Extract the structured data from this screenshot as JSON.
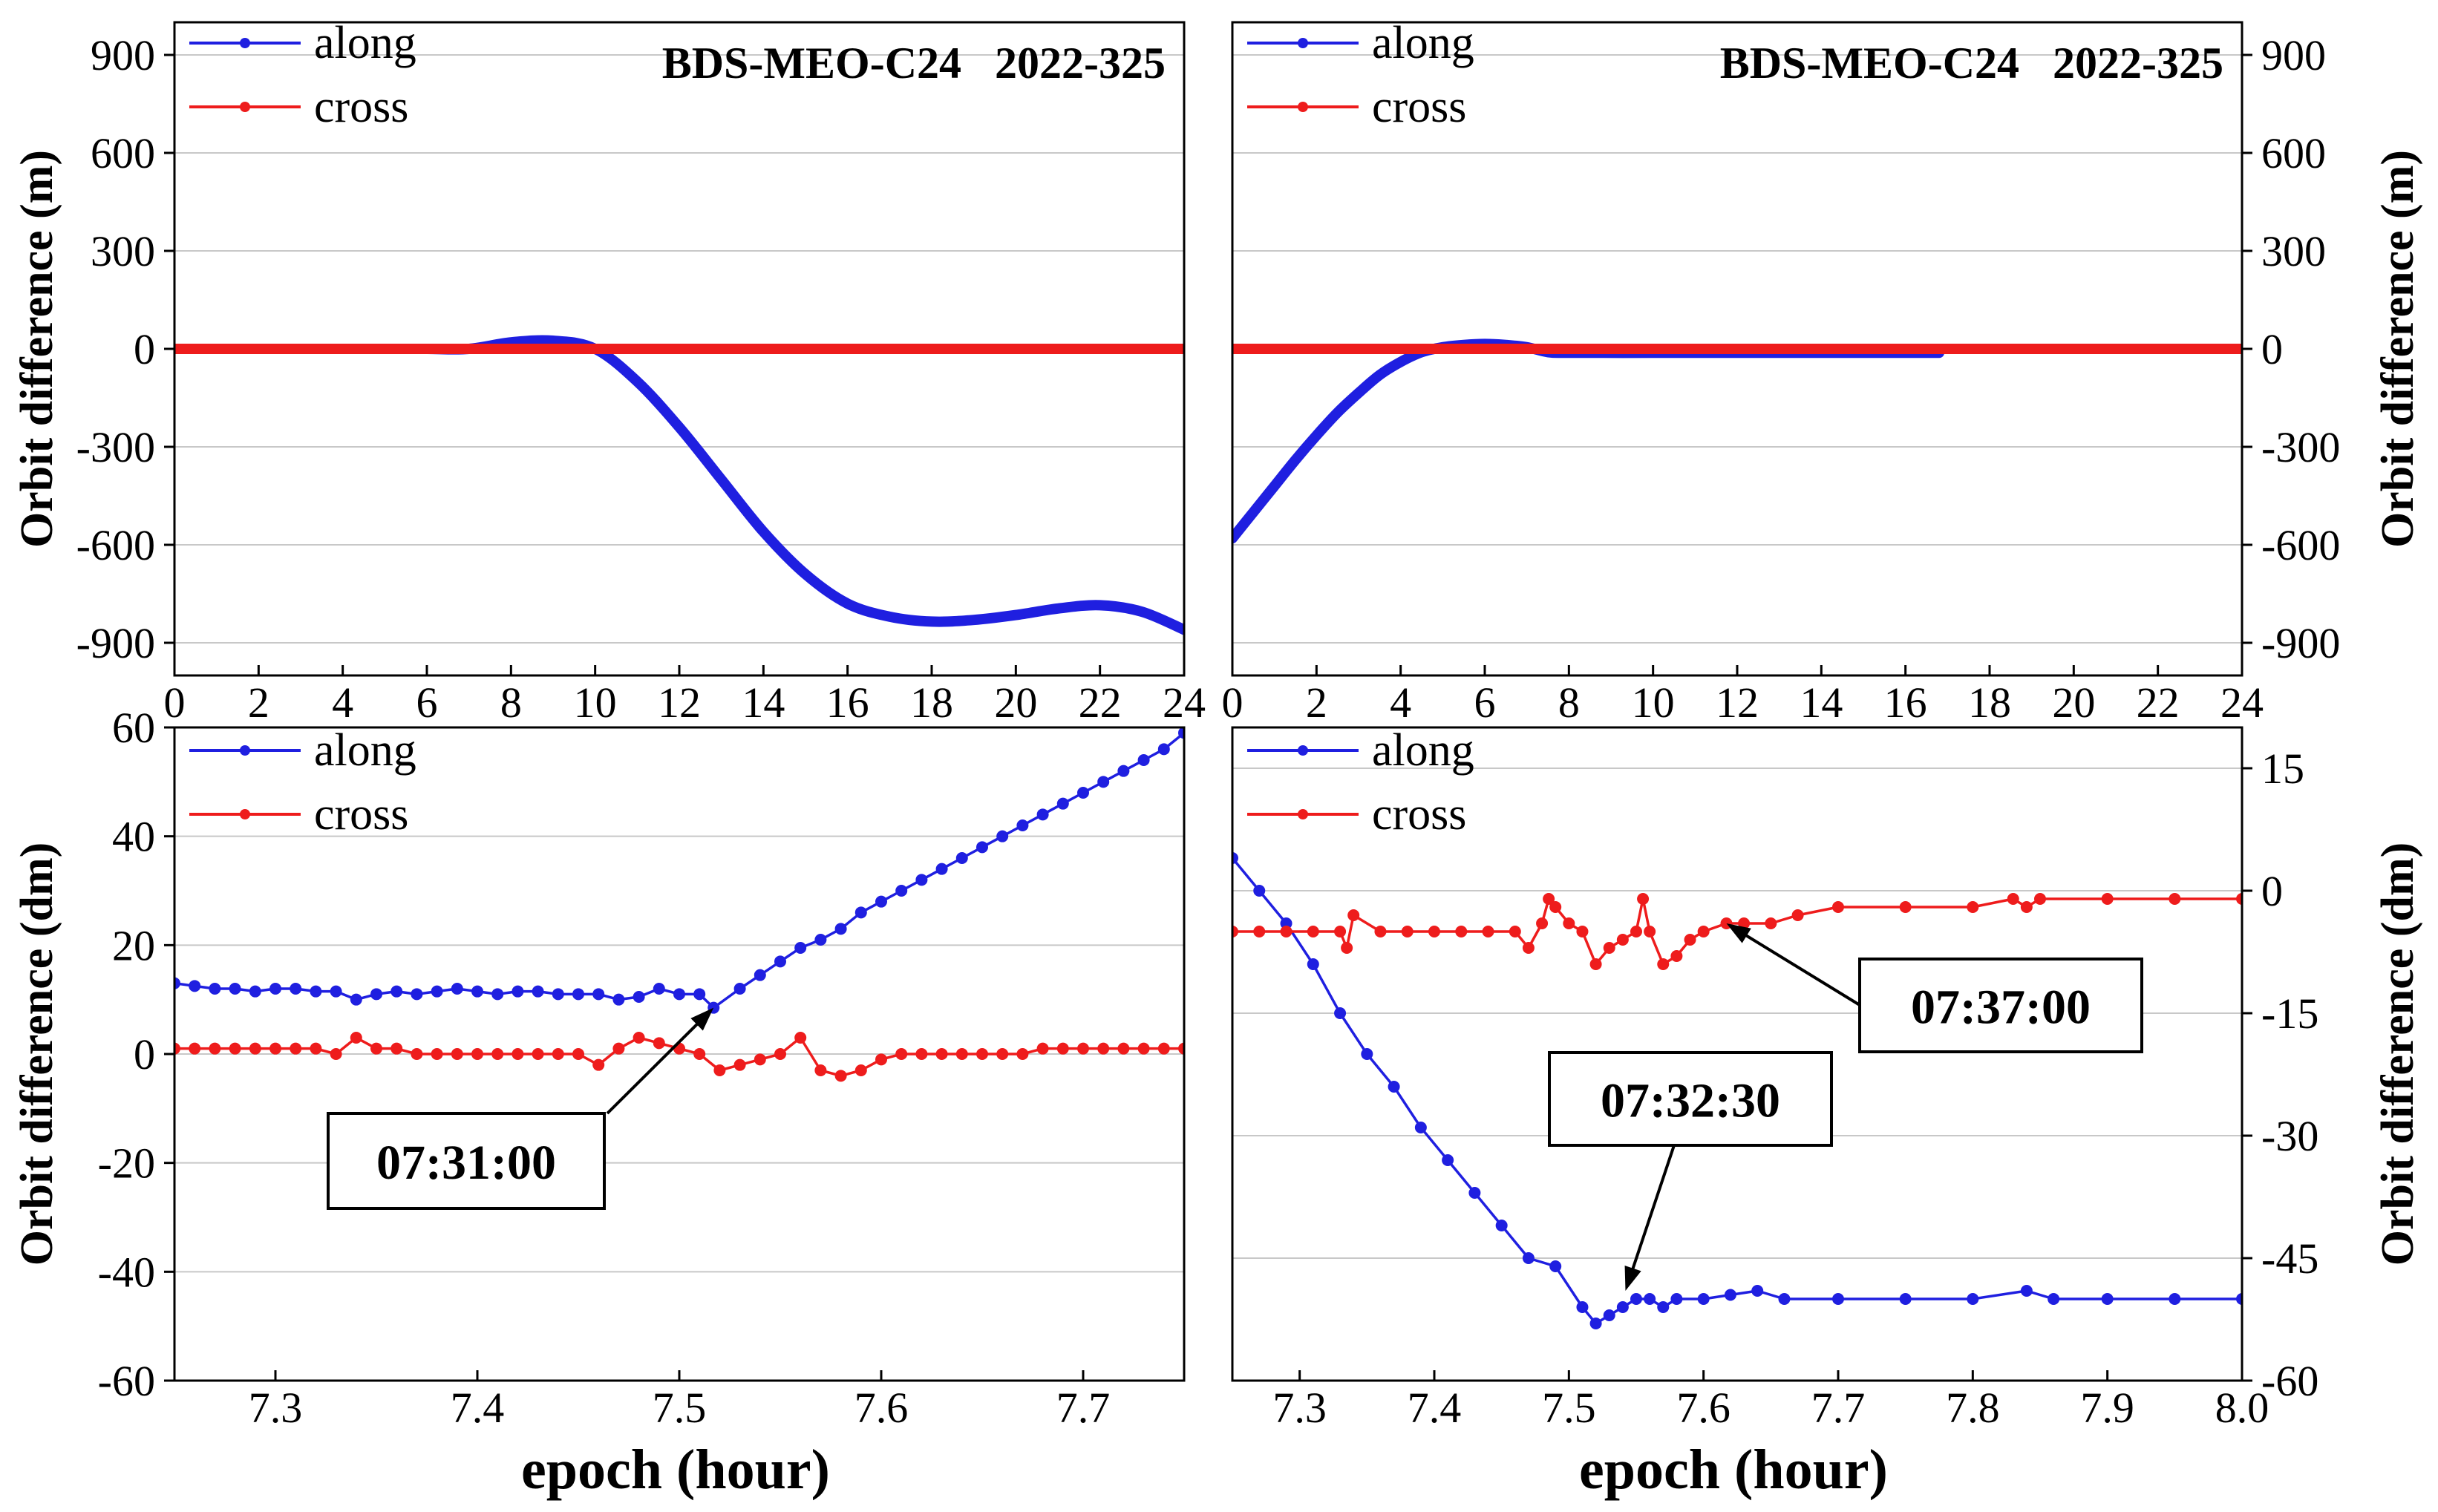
{
  "figure": {
    "x_axis_title": "epoch (hour)",
    "colors": {
      "along": "#1f1fe0",
      "cross": "#ee1c1c",
      "grid": "#c8c8c8",
      "axis": "#000000"
    }
  },
  "chart_data": [
    {
      "id": "top-left",
      "type": "line",
      "title": "BDS-MEO-C24   2022-325",
      "xlabel": "",
      "ylabel": "Orbit difference (m)",
      "xlim": [
        0,
        24
      ],
      "ylim": [
        -1000,
        1000
      ],
      "x_ticks": [
        "0",
        "2",
        "4",
        "6",
        "8",
        "10",
        "12",
        "14",
        "16",
        "18",
        "20",
        "22",
        "24"
      ],
      "y_ticks": [
        "900",
        "600",
        "300",
        "0",
        "-300",
        "-600",
        "-900"
      ],
      "legend": [
        "along",
        "cross"
      ],
      "series": [
        {
          "name": "along",
          "color": "#1f1fe0",
          "x": [
            0,
            1,
            2,
            3,
            4,
            5,
            6,
            7,
            8,
            9,
            10,
            11,
            12,
            13,
            14,
            15,
            16,
            17,
            18,
            19,
            20,
            21,
            22,
            23,
            24
          ],
          "y": [
            0,
            0,
            0,
            0,
            0,
            0,
            0,
            0,
            20,
            25,
            0,
            -100,
            -240,
            -400,
            -560,
            -690,
            -780,
            -820,
            -835,
            -830,
            -815,
            -795,
            -785,
            -805,
            -860
          ]
        },
        {
          "name": "cross",
          "color": "#ee1c1c",
          "x": [
            0,
            24
          ],
          "y": [
            0,
            0
          ]
        }
      ]
    },
    {
      "id": "top-right",
      "type": "line",
      "title": "BDS-MEO-C24   2022-325",
      "xlabel": "",
      "ylabel": "Orbit difference (m)",
      "xlim": [
        0,
        24
      ],
      "ylim": [
        -1000,
        1000
      ],
      "x_ticks": [
        "0",
        "2",
        "4",
        "6",
        "8",
        "10",
        "12",
        "14",
        "16",
        "18",
        "20",
        "22",
        "24"
      ],
      "y_ticks": [
        "900",
        "600",
        "300",
        "0",
        "-300",
        "-600",
        "-900"
      ],
      "legend": [
        "along",
        "cross"
      ],
      "series": [
        {
          "name": "along",
          "color": "#1f1fe0",
          "x": [
            0,
            0.5,
            1,
            1.5,
            2,
            2.5,
            3,
            3.5,
            4,
            4.5,
            5,
            5.5,
            6,
            6.5,
            7,
            7.5,
            8,
            10,
            12,
            14,
            16,
            16.8
          ],
          "y": [
            -580,
            -500,
            -420,
            -340,
            -265,
            -195,
            -135,
            -80,
            -40,
            -10,
            5,
            12,
            15,
            12,
            5,
            -10,
            -12,
            -12,
            -12,
            -12,
            -12,
            -12
          ]
        },
        {
          "name": "cross",
          "color": "#ee1c1c",
          "x": [
            0,
            24
          ],
          "y": [
            0,
            0
          ]
        }
      ]
    },
    {
      "id": "bottom-left",
      "type": "line",
      "title": "",
      "xlabel": "epoch (hour)",
      "ylabel": "Orbit difference (dm)",
      "xlim": [
        7.25,
        7.75
      ],
      "ylim": [
        -60,
        60
      ],
      "x_ticks": [
        "7.3",
        "7.4",
        "7.5",
        "7.6",
        "7.7"
      ],
      "y_ticks": [
        "60",
        "40",
        "20",
        "0",
        "-20",
        "-40",
        "-60"
      ],
      "legend": [
        "along",
        "cross"
      ],
      "annotation": {
        "label": "07:31:00",
        "x": 7.517,
        "y": 8.5
      },
      "series": [
        {
          "name": "along",
          "color": "#1f1fe0",
          "x": [
            7.25,
            7.26,
            7.27,
            7.28,
            7.29,
            7.3,
            7.31,
            7.32,
            7.33,
            7.34,
            7.35,
            7.36,
            7.37,
            7.38,
            7.39,
            7.4,
            7.41,
            7.42,
            7.43,
            7.44,
            7.45,
            7.46,
            7.47,
            7.48,
            7.49,
            7.5,
            7.51,
            7.517,
            7.53,
            7.54,
            7.55,
            7.56,
            7.57,
            7.58,
            7.59,
            7.6,
            7.61,
            7.62,
            7.63,
            7.64,
            7.65,
            7.66,
            7.67,
            7.68,
            7.69,
            7.7,
            7.71,
            7.72,
            7.73,
            7.74,
            7.75
          ],
          "y": [
            13,
            12.5,
            12,
            12,
            11.5,
            12,
            12,
            11.5,
            11.5,
            10,
            11,
            11.5,
            11,
            11.5,
            12,
            11.5,
            11,
            11.5,
            11.5,
            11,
            11,
            11,
            10,
            10.5,
            12,
            11,
            11,
            8.5,
            12,
            14.5,
            17,
            19.5,
            21,
            23,
            26,
            28,
            30,
            32,
            34,
            36,
            38,
            40,
            42,
            44,
            46,
            48,
            50,
            52,
            54,
            56,
            59
          ]
        },
        {
          "name": "cross",
          "color": "#ee1c1c",
          "x": [
            7.25,
            7.26,
            7.27,
            7.28,
            7.29,
            7.3,
            7.31,
            7.32,
            7.33,
            7.34,
            7.35,
            7.36,
            7.37,
            7.38,
            7.39,
            7.4,
            7.41,
            7.42,
            7.43,
            7.44,
            7.45,
            7.46,
            7.47,
            7.48,
            7.49,
            7.5,
            7.51,
            7.52,
            7.53,
            7.54,
            7.55,
            7.56,
            7.57,
            7.58,
            7.59,
            7.6,
            7.61,
            7.62,
            7.63,
            7.64,
            7.65,
            7.66,
            7.67,
            7.68,
            7.69,
            7.7,
            7.71,
            7.72,
            7.73,
            7.74,
            7.75
          ],
          "y": [
            1,
            1,
            1,
            1,
            1,
            1,
            1,
            1,
            0,
            3,
            1,
            1,
            0,
            0,
            0,
            0,
            0,
            0,
            0,
            0,
            0,
            -2,
            1,
            3,
            2,
            1,
            0,
            -3,
            -2,
            -1,
            0,
            3,
            -3,
            -4,
            -3,
            -1,
            0,
            0,
            0,
            0,
            0,
            0,
            0,
            1,
            1,
            1,
            1,
            1,
            1,
            1,
            1
          ]
        }
      ]
    },
    {
      "id": "bottom-right",
      "type": "line",
      "title": "",
      "xlabel": "epoch (hour)",
      "ylabel": "Orbit difference (dm)",
      "xlim": [
        7.25,
        8.0
      ],
      "ylim": [
        -60,
        20
      ],
      "x_ticks": [
        "7.3",
        "7.4",
        "7.5",
        "7.6",
        "7.7",
        "7.8",
        "7.9",
        "8.0"
      ],
      "y_ticks": [
        "15",
        "0",
        "-15",
        "-30",
        "-45",
        "-60"
      ],
      "legend": [
        "along",
        "cross"
      ],
      "annotations": [
        {
          "label": "07:37:00",
          "x": 7.617,
          "y": -4
        },
        {
          "label": "07:32:30",
          "x": 7.542,
          "y": -49
        }
      ],
      "series": [
        {
          "name": "along",
          "color": "#1f1fe0",
          "x": [
            7.25,
            7.27,
            7.29,
            7.31,
            7.33,
            7.35,
            7.37,
            7.39,
            7.41,
            7.43,
            7.45,
            7.47,
            7.49,
            7.51,
            7.52,
            7.53,
            7.54,
            7.55,
            7.56,
            7.57,
            7.58,
            7.6,
            7.62,
            7.64,
            7.66,
            7.7,
            7.75,
            7.8,
            7.84,
            7.86,
            7.9,
            7.95,
            8.0
          ],
          "y": [
            4,
            0,
            -4,
            -9,
            -15,
            -20,
            -24,
            -29,
            -33,
            -37,
            -41,
            -45,
            -46,
            -51,
            -53,
            -52,
            -51,
            -50,
            -50,
            -51,
            -50,
            -50,
            -49.5,
            -49,
            -50,
            -50,
            -50,
            -50,
            -49,
            -50,
            -50,
            -50,
            -50
          ]
        },
        {
          "name": "cross",
          "color": "#ee1c1c",
          "x": [
            7.25,
            7.27,
            7.29,
            7.31,
            7.33,
            7.335,
            7.34,
            7.36,
            7.38,
            7.4,
            7.42,
            7.44,
            7.46,
            7.47,
            7.48,
            7.485,
            7.49,
            7.5,
            7.51,
            7.52,
            7.53,
            7.54,
            7.55,
            7.555,
            7.56,
            7.57,
            7.58,
            7.59,
            7.6,
            7.617,
            7.63,
            7.65,
            7.67,
            7.7,
            7.75,
            7.8,
            7.83,
            7.84,
            7.85,
            7.9,
            7.95,
            8.0
          ],
          "y": [
            -5,
            -5,
            -5,
            -5,
            -5,
            -7,
            -3,
            -5,
            -5,
            -5,
            -5,
            -5,
            -5,
            -7,
            -4,
            -1,
            -2,
            -4,
            -5,
            -9,
            -7,
            -6,
            -5,
            -1,
            -5,
            -9,
            -8,
            -6,
            -5,
            -4,
            -4,
            -4,
            -3,
            -2,
            -2,
            -2,
            -1,
            -2,
            -1,
            -1,
            -1,
            -1
          ]
        }
      ]
    }
  ]
}
